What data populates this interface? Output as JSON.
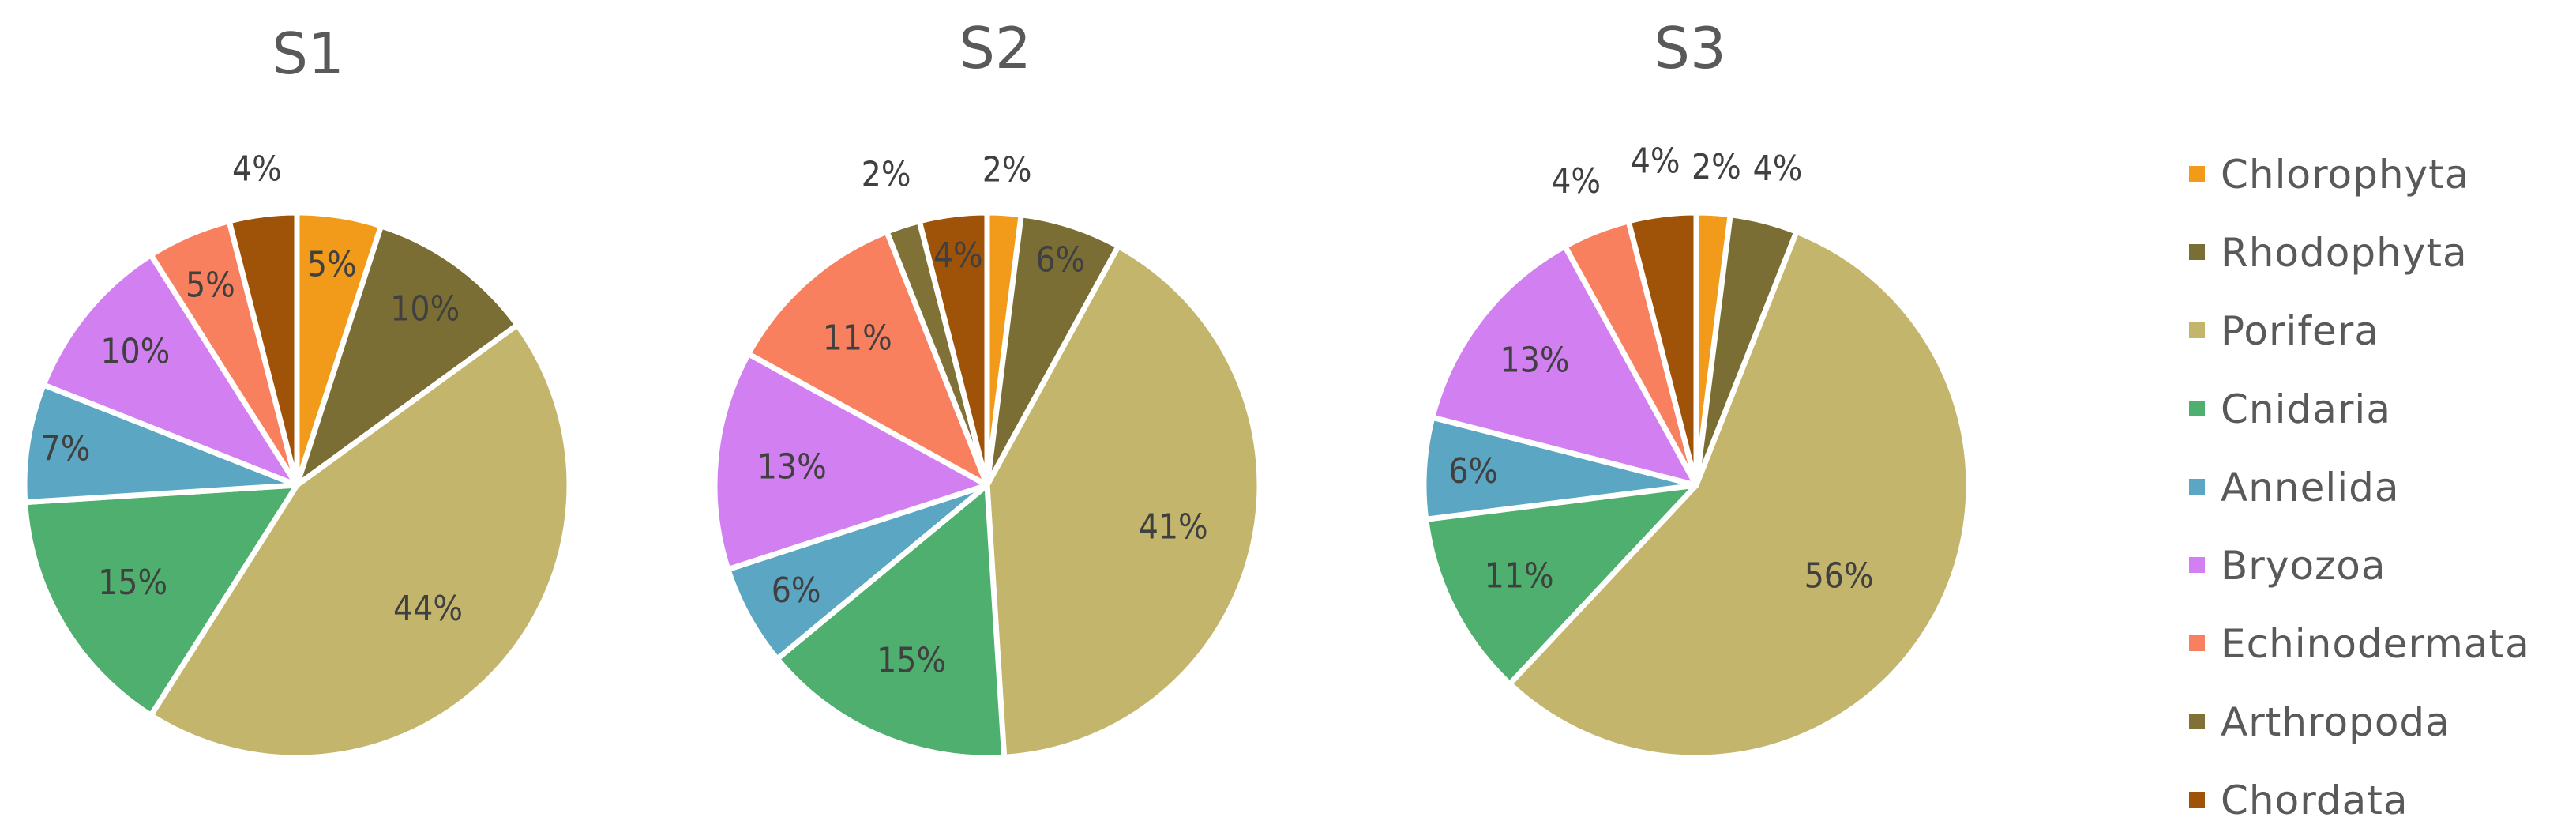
{
  "chart_data": [
    {
      "type": "pie",
      "title": "S1",
      "categories": [
        "Chlorophyta",
        "Rhodophyta",
        "Porifera",
        "Cnidaria",
        "Annelida",
        "Bryozoa",
        "Echinodermata",
        "Arthropoda",
        "Chordata"
      ],
      "values": [
        5,
        10,
        44,
        15,
        7,
        10,
        5,
        0,
        4
      ],
      "labels": [
        "5%",
        "10%",
        "44%",
        "15%",
        "7%",
        "10%",
        "5%",
        "",
        "4%"
      ]
    },
    {
      "type": "pie",
      "title": "S2",
      "categories": [
        "Chlorophyta",
        "Rhodophyta",
        "Porifera",
        "Cnidaria",
        "Annelida",
        "Bryozoa",
        "Echinodermata",
        "Arthropoda",
        "Chordata"
      ],
      "values": [
        2,
        6,
        41,
        15,
        6,
        13,
        11,
        2,
        4
      ],
      "labels": [
        "2%",
        "6%",
        "41%",
        "15%",
        "6%",
        "13%",
        "11%",
        "2%",
        "4%"
      ]
    },
    {
      "type": "pie",
      "title": "S3",
      "categories": [
        "Chlorophyta",
        "Rhodophyta",
        "Porifera",
        "Cnidaria",
        "Annelida",
        "Bryozoa",
        "Echinodermata",
        "Arthropoda",
        "Chordata"
      ],
      "values": [
        2,
        4,
        56,
        11,
        6,
        13,
        4,
        0,
        4
      ],
      "labels": [
        "2%",
        "4%",
        "56%",
        "11%",
        "6%",
        "13%",
        "4%",
        "",
        "4%"
      ]
    }
  ],
  "legend": {
    "position": "right",
    "entries": [
      "Chlorophyta",
      "Rhodophyta",
      "Porifera",
      "Cnidaria",
      "Annelida",
      "Bryozoa",
      "Echinodermata",
      "Arthropoda",
      "Chordata"
    ]
  },
  "colors": [
    "#F29A1A",
    "#7B6E35",
    "#C4B56D",
    "#4FAF6E",
    "#5BA6C2",
    "#D27FF1",
    "#F9805F",
    "#807236",
    "#9E5308"
  ]
}
